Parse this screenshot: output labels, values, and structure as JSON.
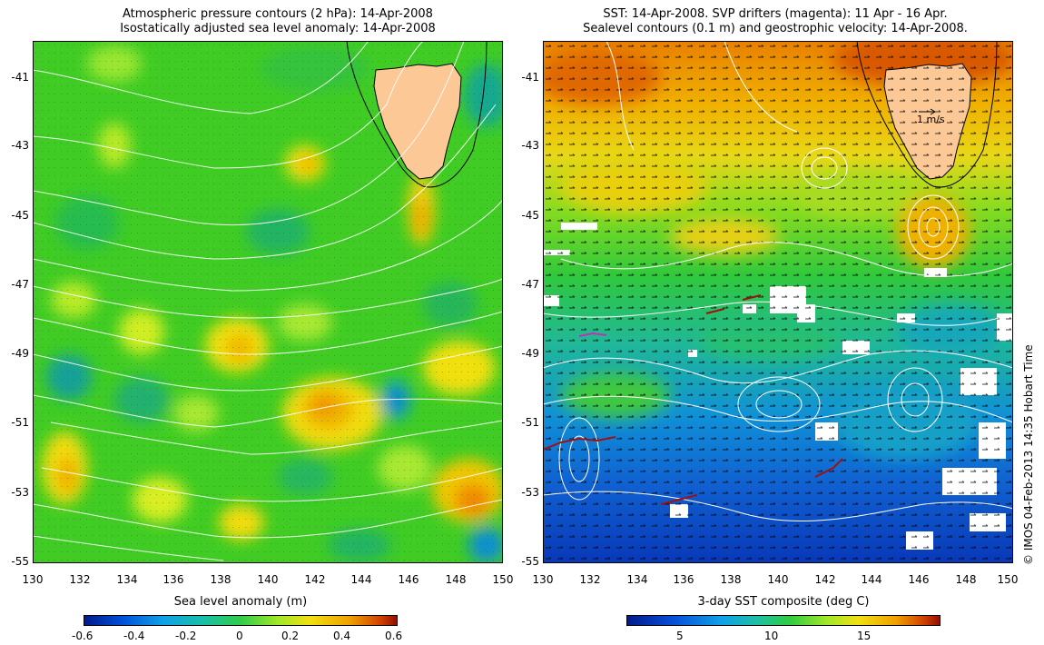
{
  "left_panel": {
    "title_line1": "Atmospheric pressure contours (2 hPa): 14-Apr-2008",
    "title_line2": "Isostatically adjusted sea level anomaly: 14-Apr-2008",
    "x_ticks": [
      "130",
      "132",
      "134",
      "136",
      "138",
      "140",
      "142",
      "144",
      "146",
      "148",
      "150"
    ],
    "y_ticks": [
      "-41",
      "-43",
      "-45",
      "-47",
      "-49",
      "-51",
      "-53",
      "-55"
    ],
    "colorbar": {
      "label": "Sea level anomaly (m)",
      "ticks": [
        "-0.6",
        "-0.4",
        "-0.2",
        "0",
        "0.2",
        "0.4",
        "0.6"
      ],
      "range": [
        -0.6,
        0.6
      ]
    }
  },
  "right_panel": {
    "title_line1": "SST: 14-Apr-2008. SVP drifters (magenta): 11 Apr - 16 Apr.",
    "title_line2": "Sealevel contours (0.1 m) and geostrophic velocity: 14-Apr-2008.",
    "x_ticks": [
      "130",
      "132",
      "134",
      "136",
      "138",
      "140",
      "142",
      "144",
      "146",
      "148",
      "150"
    ],
    "y_ticks": [
      "-41",
      "-43",
      "-45",
      "-47",
      "-49",
      "-51",
      "-53",
      "-55"
    ],
    "velocity_scale_label": "1 m/s",
    "colorbar": {
      "label": "3-day SST composite (deg C)",
      "ticks": [
        "5",
        "10",
        "15"
      ],
      "range": [
        2,
        19
      ]
    }
  },
  "credit": "© IMOS 04-Feb-2013 14:35 Hobart Time",
  "colors": {
    "land": "#fbc896",
    "contour_white": "#ffffff",
    "drifter": "#c030c0",
    "sla_base": "#3cd21e",
    "sst_warm": "#f0a000",
    "sst_cold": "#1060d8"
  }
}
